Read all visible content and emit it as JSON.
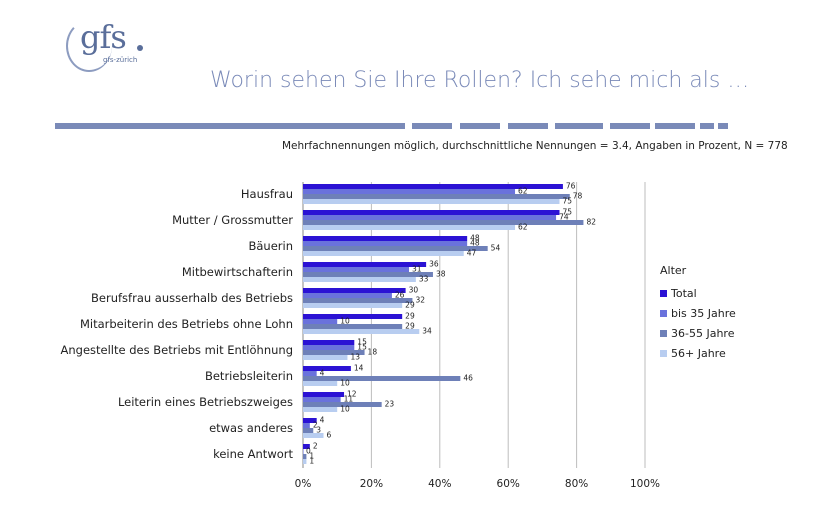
{
  "logo": {
    "text": "gfs",
    "sub": "gfs-zürich"
  },
  "header": {
    "title": "Worin sehen Sie Ihre Rollen? Ich sehe mich als …",
    "subtitle": "Mehrfachnennungen möglich, durchschnittliche Nennungen = 3.4, Angaben in Prozent, N = 778"
  },
  "colors": {
    "total": "#2b12d4",
    "bis35": "#6a72dc",
    "mid": "#6e80b8",
    "old": "#b8cdf0",
    "separator": "#7a8ab8"
  },
  "legend": {
    "title": "Alter"
  },
  "chart_data": {
    "type": "bar",
    "orientation": "horizontal",
    "categories": [
      "Hausfrau",
      "Mutter / Grossmutter",
      "Bäuerin",
      "Mitbewirtschafterin",
      "Berufsfrau ausserhalb des Betriebs",
      "Mitarbeiterin des Betriebs ohne Lohn",
      "Angestellte des Betriebs mit Entlöhnung",
      "Betriebsleiterin",
      "Leiterin eines Betriebszweiges",
      "etwas anderes",
      "keine Antwort"
    ],
    "series": [
      {
        "name": "Total",
        "values": [
          76,
          75,
          48,
          36,
          30,
          29,
          15,
          14,
          12,
          4,
          2
        ]
      },
      {
        "name": "bis 35 Jahre",
        "values": [
          62,
          74,
          48,
          31,
          26,
          10,
          15,
          4,
          11,
          2,
          0
        ]
      },
      {
        "name": "36-55 Jahre",
        "values": [
          78,
          82,
          54,
          38,
          32,
          29,
          18,
          46,
          23,
          3,
          1
        ]
      },
      {
        "name": "56+ Jahre",
        "values": [
          75,
          62,
          47,
          33,
          29,
          34,
          13,
          10,
          10,
          6,
          1
        ]
      }
    ],
    "xlim": [
      0,
      100
    ],
    "xticks": [
      "0%",
      "20%",
      "40%",
      "60%",
      "80%",
      "100%"
    ],
    "grid": true,
    "legend_position": "right"
  }
}
